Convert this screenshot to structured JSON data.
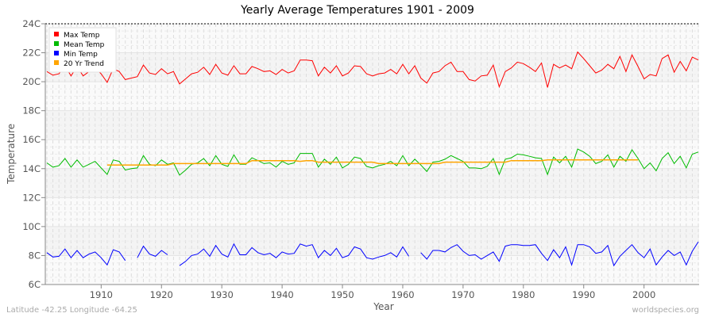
{
  "chart_data": {
    "type": "line",
    "title": "Yearly Average Temperatures 1901 - 2009",
    "xlabel": "Year",
    "ylabel": "Temperature",
    "xlim": [
      1901,
      2009
    ],
    "ylim": [
      6,
      24
    ],
    "x_ticks": [
      1910,
      1920,
      1930,
      1940,
      1950,
      1960,
      1970,
      1980,
      1990,
      2000
    ],
    "y_ticks": [
      "6C",
      "8C",
      "10C",
      "12C",
      "14C",
      "16C",
      "18C",
      "20C",
      "22C",
      "24C"
    ],
    "grid": true,
    "legend_position": "top-left",
    "x_start": 1901,
    "series": [
      {
        "name": "Max Temp",
        "color": "#ff0000",
        "values": [
          20.7,
          20.45,
          20.55,
          21.1,
          20.4,
          21.05,
          20.4,
          20.7,
          20.95,
          20.55,
          19.95,
          20.9,
          20.7,
          20.15,
          20.25,
          20.35,
          21.15,
          20.6,
          20.5,
          20.9,
          20.55,
          20.7,
          19.85,
          20.2,
          20.55,
          20.65,
          21.0,
          20.5,
          21.2,
          20.6,
          20.45,
          21.1,
          20.55,
          20.55,
          21.05,
          20.9,
          20.7,
          20.75,
          20.5,
          20.85,
          20.6,
          20.75,
          21.5,
          21.5,
          21.45,
          20.4,
          21.0,
          20.6,
          21.1,
          20.4,
          20.6,
          21.1,
          21.05,
          20.55,
          20.4,
          20.55,
          20.6,
          20.85,
          20.55,
          21.2,
          20.55,
          21.1,
          20.25,
          19.9,
          20.6,
          20.7,
          21.1,
          21.35,
          20.7,
          20.7,
          20.15,
          20.05,
          20.4,
          20.45,
          21.15,
          19.65,
          20.7,
          20.95,
          21.35,
          21.25,
          21.0,
          20.7,
          21.3,
          19.6,
          21.2,
          20.95,
          21.15,
          20.9,
          22.05,
          21.6,
          21.1,
          20.6,
          20.8,
          21.2,
          20.9,
          21.75,
          20.7,
          21.85,
          21.05,
          20.2,
          20.5,
          20.4,
          21.6,
          21.85,
          20.65,
          21.4,
          20.75,
          21.7,
          21.5
        ]
      },
      {
        "name": "Mean Temp",
        "color": "#00bb00",
        "values": [
          14.4,
          14.1,
          14.2,
          14.7,
          14.1,
          14.6,
          14.1,
          14.3,
          14.5,
          14.05,
          13.6,
          14.6,
          14.5,
          13.9,
          14.0,
          14.05,
          14.9,
          14.3,
          14.2,
          14.6,
          14.3,
          14.4,
          13.55,
          13.9,
          14.3,
          14.4,
          14.7,
          14.2,
          14.9,
          14.3,
          14.15,
          14.95,
          14.3,
          14.3,
          14.75,
          14.55,
          14.35,
          14.4,
          14.1,
          14.5,
          14.3,
          14.4,
          15.05,
          15.05,
          15.05,
          14.1,
          14.65,
          14.3,
          14.8,
          14.05,
          14.3,
          14.8,
          14.7,
          14.15,
          14.05,
          14.2,
          14.3,
          14.5,
          14.2,
          14.9,
          14.2,
          14.65,
          14.25,
          13.8,
          14.45,
          14.5,
          14.65,
          14.9,
          14.7,
          14.5,
          14.05,
          14.05,
          14.0,
          14.15,
          14.7,
          13.6,
          14.65,
          14.75,
          15.0,
          14.95,
          14.85,
          14.75,
          14.7,
          13.6,
          14.8,
          14.4,
          14.85,
          14.1,
          15.35,
          15.15,
          14.85,
          14.35,
          14.5,
          14.95,
          14.1,
          14.85,
          14.5,
          15.3,
          14.7,
          14.0,
          14.4,
          13.85,
          14.7,
          15.1,
          14.35,
          14.85,
          14.05,
          15.0,
          15.15
        ]
      },
      {
        "name": "Min Temp",
        "color": "#0000ff",
        "values": [
          8.2,
          7.9,
          7.95,
          8.45,
          7.85,
          8.35,
          7.85,
          8.1,
          8.25,
          7.85,
          7.35,
          8.4,
          8.25,
          7.65,
          null,
          7.85,
          8.65,
          8.1,
          7.95,
          8.35,
          8.05,
          null,
          7.3,
          7.6,
          8.0,
          8.1,
          8.45,
          7.95,
          8.7,
          8.1,
          7.9,
          8.8,
          8.05,
          8.05,
          8.55,
          8.2,
          8.05,
          8.15,
          7.85,
          8.25,
          8.1,
          8.15,
          8.8,
          8.65,
          8.75,
          7.85,
          8.35,
          8.0,
          8.5,
          7.85,
          8.0,
          8.6,
          8.45,
          7.85,
          7.75,
          7.9,
          8.0,
          8.2,
          7.9,
          8.6,
          7.95,
          null,
          8.2,
          7.75,
          8.35,
          8.35,
          8.25,
          8.55,
          8.75,
          8.3,
          8.0,
          8.05,
          7.75,
          8.0,
          8.25,
          7.6,
          8.65,
          8.75,
          8.75,
          8.7,
          8.7,
          8.75,
          8.15,
          7.65,
          8.4,
          7.85,
          8.6,
          7.35,
          8.75,
          8.75,
          8.6,
          8.15,
          8.25,
          8.7,
          7.3,
          7.95,
          8.35,
          8.75,
          8.2,
          7.85,
          8.45,
          7.35,
          7.9,
          8.35,
          8.0,
          8.25,
          7.35,
          8.3,
          8.95
        ]
      },
      {
        "name": "20 Yr Trend",
        "color": "#ffa500",
        "values": [
          null,
          null,
          null,
          null,
          null,
          null,
          null,
          null,
          null,
          null,
          14.25,
          14.25,
          14.25,
          14.25,
          14.25,
          14.25,
          14.25,
          14.25,
          14.25,
          14.25,
          14.25,
          14.35,
          14.35,
          14.35,
          14.35,
          14.35,
          14.35,
          14.35,
          14.35,
          14.35,
          14.35,
          14.35,
          14.35,
          14.35,
          14.55,
          14.55,
          14.55,
          14.55,
          14.55,
          14.55,
          14.55,
          14.55,
          14.5,
          14.55,
          14.55,
          14.45,
          14.45,
          14.45,
          14.45,
          14.45,
          14.45,
          14.45,
          14.45,
          14.45,
          14.45,
          14.35,
          14.35,
          14.35,
          14.35,
          14.35,
          14.35,
          14.35,
          14.35,
          14.35,
          14.35,
          14.35,
          14.45,
          14.45,
          14.45,
          14.45,
          14.45,
          14.45,
          14.45,
          14.45,
          14.45,
          14.45,
          14.45,
          14.55,
          14.55,
          14.55,
          14.55,
          14.55,
          14.55,
          14.6,
          14.6,
          14.6,
          14.6,
          14.6,
          14.6,
          14.6,
          14.6,
          14.6,
          14.6,
          14.6,
          14.6,
          14.6,
          14.6,
          14.6,
          14.6,
          null,
          null,
          null,
          null,
          null,
          null,
          null,
          null,
          null,
          null
        ]
      }
    ]
  },
  "footer": {
    "location": "Latitude -42.25 Longitude -64.25",
    "source": "worldspecies.org"
  }
}
